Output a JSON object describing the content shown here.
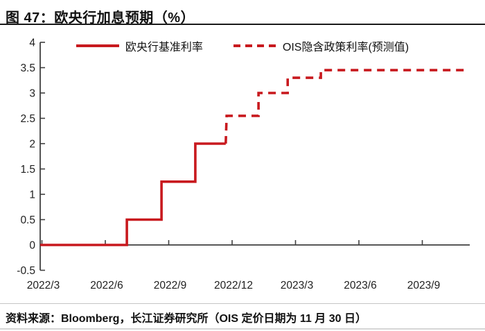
{
  "header": {
    "title": "图 47：欧央行加息预期（%）"
  },
  "legend": [
    {
      "label": "欧央行基准利率",
      "style": "solid"
    },
    {
      "label": "OIS隐含政策利率(预测值)",
      "style": "dashed"
    }
  ],
  "footer": {
    "source": "资料来源：Bloomberg，长江证券研究所（OIS 定价日期为 11 月 30 日）"
  },
  "colors": {
    "series_red": "#C8191E",
    "axis": "#404040",
    "tick_text": "#1f1f1f"
  },
  "chart_data": {
    "type": "line",
    "subtype": "step",
    "title": "欧央行加息预期（%）",
    "x_unit": "months since 2022/3",
    "xlim": [
      -0.1,
      20.3
    ],
    "ylim": [
      -0.5,
      4
    ],
    "grid": false,
    "legend_position": "top",
    "x_ticks": [
      {
        "m": 0,
        "label": "2022/3"
      },
      {
        "m": 3,
        "label": "2022/6"
      },
      {
        "m": 6,
        "label": "2022/9"
      },
      {
        "m": 9,
        "label": "2022/12"
      },
      {
        "m": 12,
        "label": "2023/3"
      },
      {
        "m": 15,
        "label": "2023/6"
      },
      {
        "m": 18,
        "label": "2023/9"
      }
    ],
    "y_ticks": [
      {
        "v": -0.5,
        "label": "-0.5"
      },
      {
        "v": 0,
        "label": "0"
      },
      {
        "v": 0.5,
        "label": "0.5"
      },
      {
        "v": 1,
        "label": "1"
      },
      {
        "v": 1.5,
        "label": "1.5"
      },
      {
        "v": 2,
        "label": "2"
      },
      {
        "v": 2.5,
        "label": "2.5"
      },
      {
        "v": 3,
        "label": "3"
      },
      {
        "v": 3.5,
        "label": "3.5"
      },
      {
        "v": 4,
        "label": "4"
      }
    ],
    "series": [
      {
        "name": "欧央行基准利率",
        "style": "solid",
        "points": [
          [
            -0.08,
            0
          ],
          [
            4.02,
            0
          ],
          [
            4.02,
            0.5
          ],
          [
            5.66,
            0.5
          ],
          [
            5.66,
            1.25
          ],
          [
            7.26,
            1.25
          ],
          [
            7.26,
            2.0
          ],
          [
            8.7,
            2.0
          ]
        ]
      },
      {
        "name": "OIS隐含政策利率(预测值)",
        "style": "dashed",
        "points": [
          [
            8.7,
            2.0
          ],
          [
            8.74,
            2.55
          ],
          [
            10.25,
            2.55
          ],
          [
            10.25,
            3.0
          ],
          [
            11.63,
            3.0
          ],
          [
            11.63,
            3.3
          ],
          [
            13.2,
            3.3
          ],
          [
            13.2,
            3.45
          ],
          [
            20.05,
            3.45
          ]
        ]
      }
    ]
  }
}
